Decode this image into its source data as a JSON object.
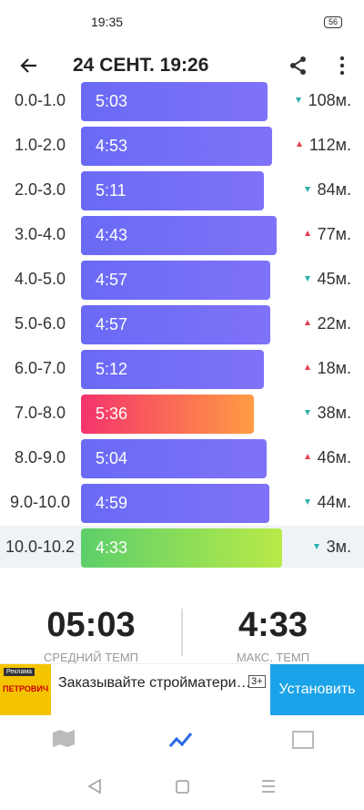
{
  "status_bar": {
    "time": "19:35",
    "battery": "56"
  },
  "header": {
    "title": "24 СЕНТ. 19:26"
  },
  "splits": [
    [
      "0.0-1.0",
      "5:03",
      "108м."
    ],
    [
      "1.0-2.0",
      "4:53",
      "112м."
    ],
    [
      "2.0-3.0",
      "5:11",
      "84м."
    ],
    [
      "3.0-4.0",
      "4:43",
      "77м."
    ],
    [
      "4.0-5.0",
      "4:57",
      "45м."
    ],
    [
      "5.0-6.0",
      "4:57",
      "22м."
    ],
    [
      "6.0-7.0",
      "5:12",
      "18м."
    ],
    [
      "7.0-8.0",
      "5:36",
      "38м."
    ],
    [
      "8.0-9.0",
      "5:04",
      "46м."
    ],
    [
      "9.0-10.0",
      "4:59",
      "44м."
    ],
    [
      "10.0-10.2",
      "4:33",
      "3м."
    ]
  ],
  "summary": [
    {
      "value": "05:03",
      "label": "СРЕДНИЙ ТЕМП"
    },
    {
      "value": "4:33",
      "label": "МАКС. ТЕМП"
    }
  ],
  "ad": {
    "badge": "Реклама",
    "brand": "ПЕТРОВИЧ",
    "text": "Заказывайте стройматери…",
    "age": "3+",
    "button": "Установить"
  }
}
